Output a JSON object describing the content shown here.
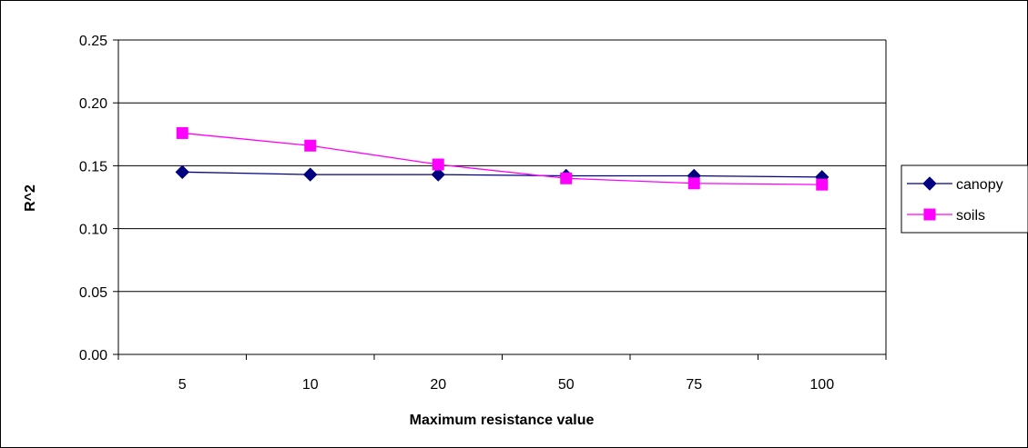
{
  "chart_data": {
    "type": "line",
    "title": "",
    "xlabel": "Maximum resistance value",
    "ylabel": "R^2",
    "categories": [
      "5",
      "10",
      "20",
      "50",
      "75",
      "100"
    ],
    "ylim": [
      0,
      0.25
    ],
    "yticks": [
      "0.00",
      "0.05",
      "0.10",
      "0.15",
      "0.20",
      "0.25"
    ],
    "grid": true,
    "legend_position": "right",
    "series": [
      {
        "name": "canopy",
        "values": [
          0.145,
          0.143,
          0.143,
          0.142,
          0.142,
          0.141
        ],
        "color": "#000080",
        "marker": "diamond"
      },
      {
        "name": "soils",
        "values": [
          0.176,
          0.166,
          0.151,
          0.14,
          0.136,
          0.135
        ],
        "color": "#ff00ff",
        "marker": "square"
      }
    ]
  }
}
